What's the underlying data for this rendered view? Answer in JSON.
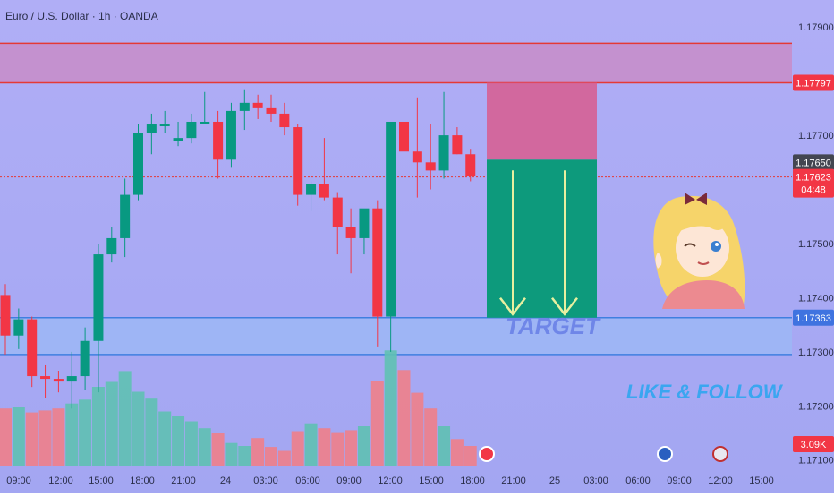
{
  "chart_data": {
    "type": "candlestick",
    "title": "Euro / U.S. Dollar · 1h · OANDA",
    "y_ticks": [
      "1.17900",
      "1.17700",
      "1.17500",
      "1.17400",
      "1.17300",
      "1.17200",
      "1.17100"
    ],
    "x_ticks": [
      "09:00",
      "12:00",
      "15:00",
      "18:00",
      "21:00",
      "24",
      "03:00",
      "06:00",
      "09:00",
      "12:00",
      "15:00",
      "18:00",
      "21:00",
      "25",
      "03:00",
      "06:00",
      "09:00",
      "12:00",
      "15:00"
    ],
    "ylim": [
      1.1704,
      1.1795
    ],
    "resistance_zone": [
      1.17797,
      1.1787
    ],
    "support_zone": [
      1.17295,
      1.17363
    ],
    "current_price_line": 1.17623,
    "price_labels": {
      "resistance": "1.17797",
      "last": "1.17650",
      "current": "1.17623",
      "countdown": "04:48",
      "support": "1.17363",
      "volume": "3.09K"
    },
    "position": {
      "side": "short",
      "entry": 1.17655,
      "stop": 1.17797,
      "target": 1.17363,
      "label": "TARGET"
    },
    "annotation": "LIKE & FOLLOW",
    "colors": {
      "up": "#089981",
      "down": "#f23645",
      "vol_up": "#5fc1b3",
      "vol_down": "#f08089",
      "background": "#a9a8f4",
      "resistance_line": "#e53935",
      "resistance_fill": "#c88cc8",
      "support_line": "#3f7fe0",
      "support_fill": "#9db6f5",
      "profit": "#0d9a7c",
      "loss": "#d85c8e",
      "axis_badge_red": "#f23645",
      "axis_badge_blue": "#3f73e0",
      "axis_badge_dark": "#434651"
    },
    "candles": [
      {
        "o": 1.17405,
        "h": 1.17425,
        "l": 1.17295,
        "c": 1.1733
      },
      {
        "o": 1.1733,
        "h": 1.1738,
        "l": 1.17305,
        "c": 1.1736
      },
      {
        "o": 1.1736,
        "h": 1.17365,
        "l": 1.17235,
        "c": 1.17255
      },
      {
        "o": 1.17255,
        "h": 1.17275,
        "l": 1.17215,
        "c": 1.1725
      },
      {
        "o": 1.1725,
        "h": 1.17265,
        "l": 1.17225,
        "c": 1.17245
      },
      {
        "o": 1.17245,
        "h": 1.173,
        "l": 1.17195,
        "c": 1.17255
      },
      {
        "o": 1.17255,
        "h": 1.17345,
        "l": 1.1723,
        "c": 1.1732
      },
      {
        "o": 1.1732,
        "h": 1.175,
        "l": 1.17225,
        "c": 1.1748
      },
      {
        "o": 1.1748,
        "h": 1.1753,
        "l": 1.17465,
        "c": 1.1751
      },
      {
        "o": 1.1751,
        "h": 1.1762,
        "l": 1.17475,
        "c": 1.1759
      },
      {
        "o": 1.1759,
        "h": 1.1772,
        "l": 1.1758,
        "c": 1.17705
      },
      {
        "o": 1.17705,
        "h": 1.1774,
        "l": 1.17665,
        "c": 1.1772
      },
      {
        "o": 1.1772,
        "h": 1.17745,
        "l": 1.17705,
        "c": 1.1772
      },
      {
        "o": 1.1769,
        "h": 1.17725,
        "l": 1.1768,
        "c": 1.17695
      },
      {
        "o": 1.17695,
        "h": 1.1774,
        "l": 1.17685,
        "c": 1.17725
      },
      {
        "o": 1.17725,
        "h": 1.1778,
        "l": 1.17725,
        "c": 1.17725
      },
      {
        "o": 1.17725,
        "h": 1.17745,
        "l": 1.1762,
        "c": 1.17655
      },
      {
        "o": 1.17655,
        "h": 1.1776,
        "l": 1.1764,
        "c": 1.17745
      },
      {
        "o": 1.17745,
        "h": 1.17785,
        "l": 1.1771,
        "c": 1.1776
      },
      {
        "o": 1.1776,
        "h": 1.17775,
        "l": 1.1773,
        "c": 1.1775
      },
      {
        "o": 1.1775,
        "h": 1.17775,
        "l": 1.17725,
        "c": 1.1774
      },
      {
        "o": 1.1774,
        "h": 1.1776,
        "l": 1.177,
        "c": 1.17715
      },
      {
        "o": 1.17715,
        "h": 1.1772,
        "l": 1.1757,
        "c": 1.1759
      },
      {
        "o": 1.1759,
        "h": 1.17615,
        "l": 1.1756,
        "c": 1.1761
      },
      {
        "o": 1.1761,
        "h": 1.17695,
        "l": 1.1758,
        "c": 1.17585
      },
      {
        "o": 1.17585,
        "h": 1.17595,
        "l": 1.1748,
        "c": 1.1753
      },
      {
        "o": 1.1753,
        "h": 1.17565,
        "l": 1.17445,
        "c": 1.1751
      },
      {
        "o": 1.1751,
        "h": 1.1756,
        "l": 1.1748,
        "c": 1.17565
      },
      {
        "o": 1.17565,
        "h": 1.1758,
        "l": 1.1731,
        "c": 1.17365
      },
      {
        "o": 1.17365,
        "h": 1.1772,
        "l": 1.173,
        "c": 1.17725
      },
      {
        "o": 1.17725,
        "h": 1.17885,
        "l": 1.1765,
        "c": 1.1767
      },
      {
        "o": 1.1767,
        "h": 1.1777,
        "l": 1.17585,
        "c": 1.1765
      },
      {
        "o": 1.1765,
        "h": 1.1772,
        "l": 1.176,
        "c": 1.17635
      },
      {
        "o": 1.17635,
        "h": 1.1778,
        "l": 1.1762,
        "c": 1.177
      },
      {
        "o": 1.177,
        "h": 1.17715,
        "l": 1.17665,
        "c": 1.17665
      },
      {
        "o": 1.17665,
        "h": 1.17675,
        "l": 1.17615,
        "c": 1.17625
      }
    ],
    "volumes": [
      58,
      60,
      54,
      56,
      58,
      63,
      67,
      80,
      85,
      96,
      75,
      68,
      55,
      50,
      45,
      38,
      33,
      23,
      20,
      28,
      19,
      15,
      35,
      43,
      38,
      34,
      36,
      40,
      86,
      117,
      97,
      74,
      58,
      40,
      27,
      20
    ]
  }
}
